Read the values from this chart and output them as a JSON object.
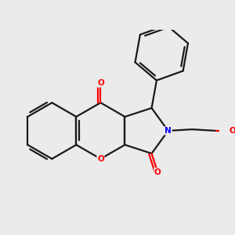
{
  "bg": "#ebebeb",
  "bond_color": "#1a1a1a",
  "oxygen_color": "#ff0000",
  "nitrogen_color": "#0000ff",
  "sulfur_color": "#bbbb00",
  "lw": 1.6,
  "dbo": 0.055,
  "xlim": [
    0.0,
    4.5
  ],
  "ylim": [
    0.5,
    4.6
  ]
}
